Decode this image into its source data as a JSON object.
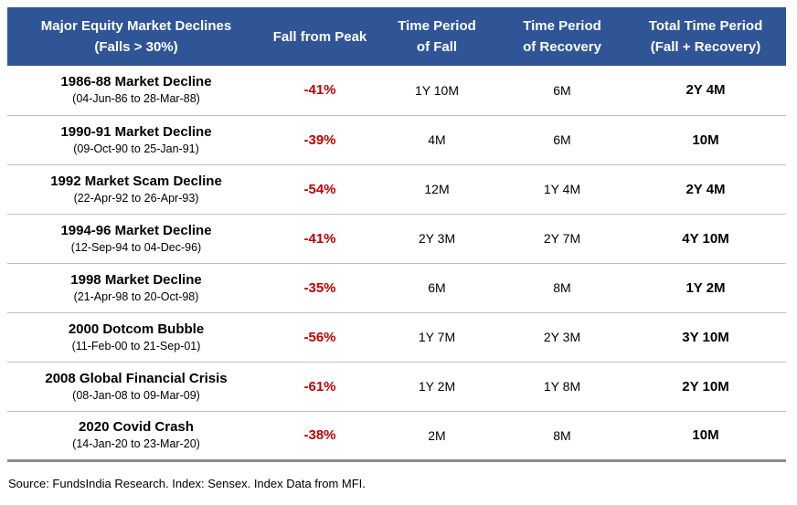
{
  "colors": {
    "header_bg": "#2F5597",
    "header_text": "#FFFFFF",
    "fall_red": "#C00000",
    "row_divider": "#BFBFBF",
    "bottom_border": "#8C8C8C",
    "text": "#000000"
  },
  "header_columns": [
    {
      "line1": "Major Equity Market Declines",
      "line2": "(Falls > 30%)"
    },
    {
      "line1": "Fall from Peak",
      "line2": ""
    },
    {
      "line1": "Time Period",
      "line2": "of Fall"
    },
    {
      "line1": "Time Period",
      "line2": "of Recovery"
    },
    {
      "line1": "Total Time Period",
      "line2": "(Fall + Recovery)"
    }
  ],
  "chart_data": {
    "type": "table",
    "title": "Major Equity Market Declines (Falls > 30%)",
    "columns": [
      "Major Equity Market Declines (Falls > 30%)",
      "Fall from Peak",
      "Time Period of Fall",
      "Time Period of Recovery",
      "Total Time Period (Fall + Recovery)"
    ],
    "rows": [
      {
        "name": "1986-88 Market Decline",
        "dates": "(04-Jun-86 to 28-Mar-88)",
        "fall_from_peak": "-41%",
        "time_period_of_fall": "1Y 10M",
        "time_period_of_recovery": "6M",
        "total_time_period": "2Y 4M"
      },
      {
        "name": "1990-91 Market Decline",
        "dates": "(09-Oct-90 to 25-Jan-91)",
        "fall_from_peak": "-39%",
        "time_period_of_fall": "4M",
        "time_period_of_recovery": "6M",
        "total_time_period": "10M"
      },
      {
        "name": "1992 Market Scam Decline",
        "dates": "(22-Apr-92 to 26-Apr-93)",
        "fall_from_peak": "-54%",
        "time_period_of_fall": "12M",
        "time_period_of_recovery": "1Y 4M",
        "total_time_period": "2Y 4M"
      },
      {
        "name": "1994-96 Market Decline",
        "dates": "(12-Sep-94 to 04-Dec-96)",
        "fall_from_peak": "-41%",
        "time_period_of_fall": "2Y 3M",
        "time_period_of_recovery": "2Y 7M",
        "total_time_period": "4Y 10M"
      },
      {
        "name": "1998 Market Decline",
        "dates": "(21-Apr-98 to 20-Oct-98)",
        "fall_from_peak": "-35%",
        "time_period_of_fall": "6M",
        "time_period_of_recovery": "8M",
        "total_time_period": "1Y 2M"
      },
      {
        "name": "2000 Dotcom Bubble",
        "dates": "(11-Feb-00 to 21-Sep-01)",
        "fall_from_peak": "-56%",
        "time_period_of_fall": "1Y 7M",
        "time_period_of_recovery": "2Y 3M",
        "total_time_period": "3Y 10M"
      },
      {
        "name": "2008 Global Financial Crisis",
        "dates": "(08-Jan-08 to 09-Mar-09)",
        "fall_from_peak": "-61%",
        "time_period_of_fall": "1Y 2M",
        "time_period_of_recovery": "1Y 8M",
        "total_time_period": "2Y 10M"
      },
      {
        "name": "2020 Covid Crash",
        "dates": "(14-Jan-20 to 23-Mar-20)",
        "fall_from_peak": "-38%",
        "time_period_of_fall": "2M",
        "time_period_of_recovery": "8M",
        "total_time_period": "10M"
      }
    ]
  },
  "footer": {
    "source_note": "Source: FundsIndia Research. Index: Sensex. Index Data from MFI."
  }
}
